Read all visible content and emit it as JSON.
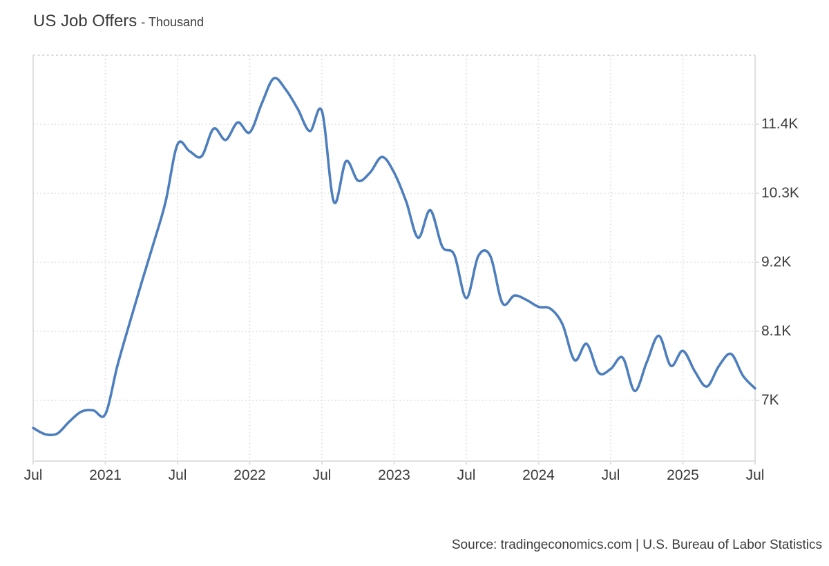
{
  "header": {
    "title": "US Job Offers",
    "subtitle": "- Thousand"
  },
  "source": {
    "text": "Source: tradingeconomics.com | U.S. Bureau of Labor Statistics"
  },
  "colors": {
    "line": "#4d7ebd",
    "grid": "#e1e1e1",
    "border": "#e0e0e0",
    "text": "#3b3b3b",
    "background": "#ffffff"
  },
  "chart_data": {
    "type": "line",
    "title": "US Job Offers",
    "subtitle": "Thousand",
    "xlabel": "",
    "ylabel": "",
    "grid": "dotted",
    "legend_position": "none",
    "x": [
      "2020-07",
      "2020-08",
      "2020-09",
      "2020-10",
      "2020-11",
      "2020-12",
      "2021-01",
      "2021-02",
      "2021-03",
      "2021-04",
      "2021-05",
      "2021-06",
      "2021-07",
      "2021-08",
      "2021-09",
      "2021-10",
      "2021-11",
      "2021-12",
      "2022-01",
      "2022-02",
      "2022-03",
      "2022-04",
      "2022-05",
      "2022-06",
      "2022-07",
      "2022-08",
      "2022-09",
      "2022-10",
      "2022-11",
      "2022-12",
      "2023-01",
      "2023-02",
      "2023-03",
      "2023-04",
      "2023-05",
      "2023-06",
      "2023-07",
      "2023-08",
      "2023-09",
      "2023-10",
      "2023-11",
      "2023-12",
      "2024-01",
      "2024-02",
      "2024-03",
      "2024-04",
      "2024-05",
      "2024-06",
      "2024-07",
      "2024-08",
      "2024-09",
      "2024-10",
      "2024-11",
      "2024-12",
      "2025-01",
      "2025-02",
      "2025-03",
      "2025-04",
      "2025-05",
      "2025-06",
      "2025-07"
    ],
    "values_thousand": [
      6560,
      6460,
      6470,
      6660,
      6820,
      6840,
      6780,
      7550,
      8220,
      8870,
      9500,
      10160,
      11080,
      10970,
      10890,
      11330,
      11150,
      11430,
      11270,
      11730,
      12130,
      11950,
      11640,
      11290,
      11610,
      10160,
      10810,
      10500,
      10630,
      10880,
      10630,
      10170,
      9590,
      10030,
      9450,
      9320,
      8630,
      9300,
      9300,
      8550,
      8670,
      8600,
      8490,
      8460,
      8210,
      7640,
      7900,
      7440,
      7500,
      7680,
      7150,
      7610,
      8030,
      7550,
      7790,
      7460,
      7220,
      7550,
      7740,
      7390,
      7190
    ],
    "values_k": [
      6.56,
      6.46,
      6.47,
      6.66,
      6.82,
      6.84,
      6.78,
      7.55,
      8.22,
      8.87,
      9.5,
      10.16,
      11.08,
      10.97,
      10.89,
      11.33,
      11.15,
      11.43,
      11.27,
      11.73,
      12.13,
      11.95,
      11.64,
      11.29,
      11.61,
      10.16,
      10.81,
      10.5,
      10.63,
      10.88,
      10.63,
      10.17,
      9.59,
      10.03,
      9.45,
      9.32,
      8.63,
      9.3,
      9.3,
      8.55,
      8.67,
      8.6,
      8.49,
      8.46,
      8.21,
      7.64,
      7.9,
      7.44,
      7.5,
      7.68,
      7.15,
      7.61,
      8.03,
      7.55,
      7.79,
      7.46,
      7.22,
      7.55,
      7.74,
      7.39,
      7.19
    ],
    "yticks": [
      {
        "value": 7.0,
        "label": "7K"
      },
      {
        "value": 8.1,
        "label": "8.1K"
      },
      {
        "value": 9.2,
        "label": "9.2K"
      },
      {
        "value": 10.3,
        "label": "10.3K"
      },
      {
        "value": 11.4,
        "label": "11.4K"
      }
    ],
    "xticks": [
      {
        "month_index": 0,
        "label": "Jul"
      },
      {
        "month_index": 6,
        "label": "2021"
      },
      {
        "month_index": 12,
        "label": "Jul"
      },
      {
        "month_index": 18,
        "label": "2022"
      },
      {
        "month_index": 24,
        "label": "Jul"
      },
      {
        "month_index": 30,
        "label": "2023"
      },
      {
        "month_index": 36,
        "label": "Jul"
      },
      {
        "month_index": 42,
        "label": "2024"
      },
      {
        "month_index": 48,
        "label": "Jul"
      },
      {
        "month_index": 54,
        "label": "2025"
      },
      {
        "month_index": 60,
        "label": "Jul"
      }
    ],
    "ylim": [
      6.03,
      12.5
    ],
    "xlim": [
      "2020-07",
      "2025-07"
    ]
  }
}
